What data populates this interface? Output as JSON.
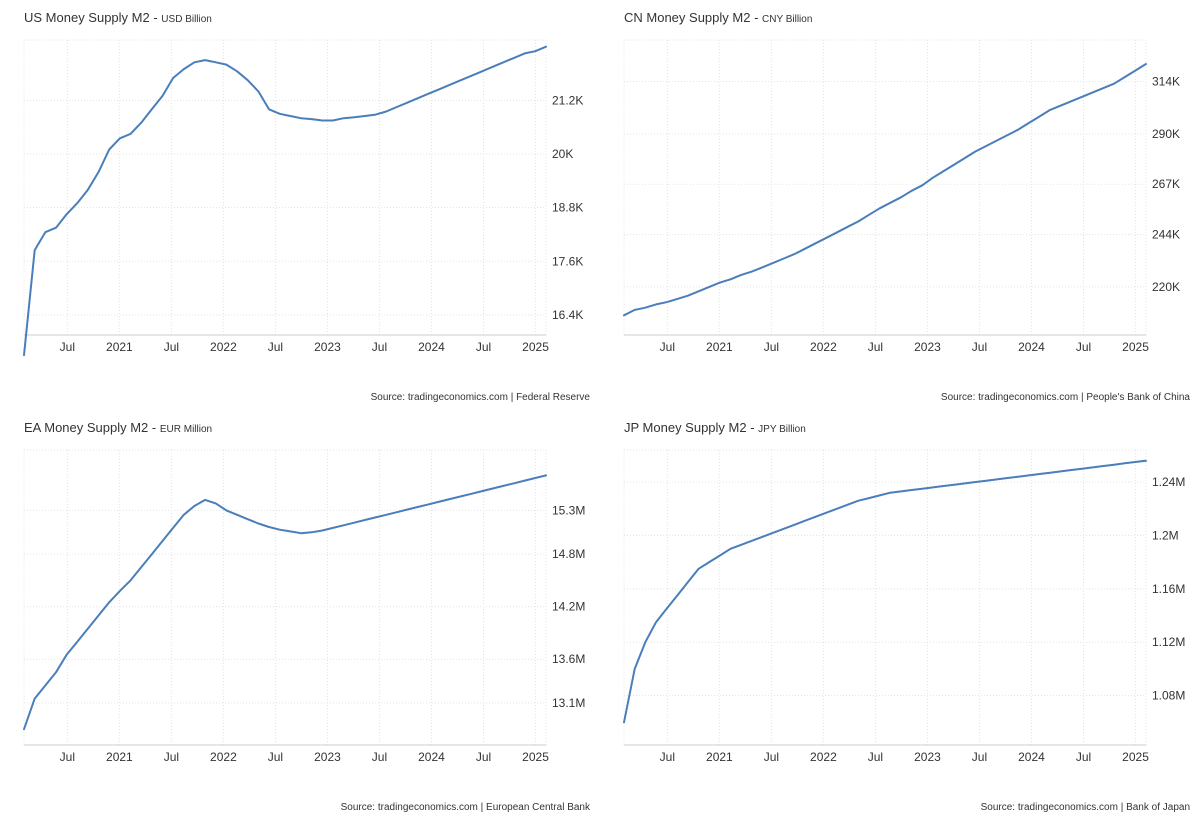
{
  "chart_data": [
    {
      "type": "line",
      "title": "US Money Supply M2",
      "unit_label": "USD Billion",
      "source": "Source: tradingeconomics.com | Federal Reserve",
      "x_labels": [
        "Jul",
        "2021",
        "Jul",
        "2022",
        "Jul",
        "2023",
        "Jul",
        "2024",
        "Jul",
        "2025"
      ],
      "x_label_index": [
        5,
        11,
        17,
        23,
        29,
        35,
        41,
        47,
        53,
        59
      ],
      "y_ticks": [
        {
          "value": 16400,
          "label": "16.4K"
        },
        {
          "value": 17600,
          "label": "17.6K"
        },
        {
          "value": 18800,
          "label": "18.8K"
        },
        {
          "value": 20000,
          "label": "20K"
        },
        {
          "value": 21200,
          "label": "21.2K"
        }
      ],
      "ylim": [
        15950,
        22550
      ],
      "series": [
        {
          "name": "M2",
          "color": "#4a7ebb",
          "values": [
            15500,
            17850,
            18250,
            18350,
            18650,
            18900,
            19200,
            19600,
            20100,
            20350,
            20450,
            20700,
            21000,
            21300,
            21700,
            21900,
            22050,
            22100,
            22050,
            22000,
            21850,
            21650,
            21400,
            21000,
            20900,
            20850,
            20800,
            20780,
            20750,
            20750,
            20800,
            20820,
            20850,
            20880,
            20950,
            21050,
            21150,
            21250,
            21350,
            21450,
            21550,
            21650,
            21750,
            21850,
            21950,
            22050,
            22150,
            22250,
            22300,
            22400
          ]
        }
      ]
    },
    {
      "type": "line",
      "title": "CN Money Supply M2",
      "unit_label": "CNY Billion",
      "source": "Source: tradingeconomics.com | People's Bank of China",
      "x_labels": [
        "Jul",
        "2021",
        "Jul",
        "2022",
        "Jul",
        "2023",
        "Jul",
        "2024",
        "Jul",
        "2025"
      ],
      "x_label_index": [
        5,
        11,
        17,
        23,
        29,
        35,
        41,
        47,
        53,
        59
      ],
      "y_ticks": [
        {
          "value": 220000,
          "label": "220K"
        },
        {
          "value": 244000,
          "label": "244K"
        },
        {
          "value": 267000,
          "label": "267K"
        },
        {
          "value": 290000,
          "label": "290K"
        },
        {
          "value": 314000,
          "label": "314K"
        }
      ],
      "ylim": [
        198000,
        333000
      ],
      "series": [
        {
          "name": "M2",
          "color": "#4a7ebb",
          "values": [
            207000,
            209500,
            210500,
            212000,
            213000,
            214500,
            216000,
            218000,
            220000,
            222000,
            223500,
            225500,
            227000,
            229000,
            231000,
            233000,
            235000,
            237500,
            240000,
            242500,
            245000,
            247500,
            250000,
            253000,
            256000,
            258500,
            261000,
            264000,
            266500,
            270000,
            273000,
            276000,
            279000,
            282000,
            284500,
            287000,
            289500,
            292000,
            295000,
            298000,
            301000,
            303000,
            305000,
            307000,
            309000,
            311000,
            313000,
            316000,
            319000,
            322000
          ]
        }
      ]
    },
    {
      "type": "line",
      "title": "EA Money Supply M2",
      "unit_label": "EUR Million",
      "source": "Source: tradingeconomics.com | European Central Bank",
      "x_labels": [
        "Jul",
        "2021",
        "Jul",
        "2022",
        "Jul",
        "2023",
        "Jul",
        "2024",
        "Jul",
        "2025"
      ],
      "x_label_index": [
        5,
        11,
        17,
        23,
        29,
        35,
        41,
        47,
        53,
        59
      ],
      "y_ticks": [
        {
          "value": 13100000,
          "label": "13.1M"
        },
        {
          "value": 13600000,
          "label": "13.6M"
        },
        {
          "value": 14200000,
          "label": "14.2M"
        },
        {
          "value": 14800000,
          "label": "14.8M"
        },
        {
          "value": 15300000,
          "label": "15.3M"
        }
      ],
      "ylim": [
        12620000,
        15990000
      ],
      "series": [
        {
          "name": "M2",
          "color": "#4a7ebb",
          "values": [
            12800000,
            13150000,
            13300000,
            13450000,
            13650000,
            13800000,
            13950000,
            14100000,
            14250000,
            14380000,
            14500000,
            14650000,
            14800000,
            14950000,
            15100000,
            15250000,
            15350000,
            15420000,
            15380000,
            15300000,
            15250000,
            15200000,
            15150000,
            15110000,
            15080000,
            15060000,
            15040000,
            15050000,
            15070000,
            15100000,
            15130000,
            15160000,
            15190000,
            15220000,
            15250000,
            15280000,
            15310000,
            15340000,
            15370000,
            15400000,
            15430000,
            15460000,
            15490000,
            15520000,
            15550000,
            15580000,
            15610000,
            15640000,
            15670000,
            15700000
          ]
        }
      ]
    },
    {
      "type": "line",
      "title": "JP Money Supply M2",
      "unit_label": "JPY Billion",
      "source": "Source: tradingeconomics.com | Bank of Japan",
      "x_labels": [
        "Jul",
        "2021",
        "Jul",
        "2022",
        "Jul",
        "2023",
        "Jul",
        "2024",
        "Jul",
        "2025"
      ],
      "x_label_index": [
        5,
        11,
        17,
        23,
        29,
        35,
        41,
        47,
        53,
        59
      ],
      "y_ticks": [
        {
          "value": 1080000,
          "label": "1.08M"
        },
        {
          "value": 1120000,
          "label": "1.12M"
        },
        {
          "value": 1160000,
          "label": "1.16M"
        },
        {
          "value": 1200000,
          "label": "1.2M"
        },
        {
          "value": 1240000,
          "label": "1.24M"
        }
      ],
      "ylim": [
        1043000,
        1264000
      ],
      "series": [
        {
          "name": "M2",
          "color": "#4a7ebb",
          "values": [
            1060000,
            1100000,
            1120000,
            1135000,
            1145000,
            1155000,
            1165000,
            1175000,
            1180000,
            1185000,
            1190000,
            1193000,
            1196000,
            1199000,
            1202000,
            1205000,
            1208000,
            1211000,
            1214000,
            1217000,
            1220000,
            1223000,
            1226000,
            1228000,
            1230000,
            1232000,
            1233000,
            1234000,
            1235000,
            1236000,
            1237000,
            1238000,
            1239000,
            1240000,
            1241000,
            1242000,
            1243000,
            1244000,
            1245000,
            1246000,
            1247000,
            1248000,
            1249000,
            1250000,
            1251000,
            1252000,
            1253000,
            1254000,
            1255000,
            1256000
          ]
        }
      ]
    }
  ]
}
